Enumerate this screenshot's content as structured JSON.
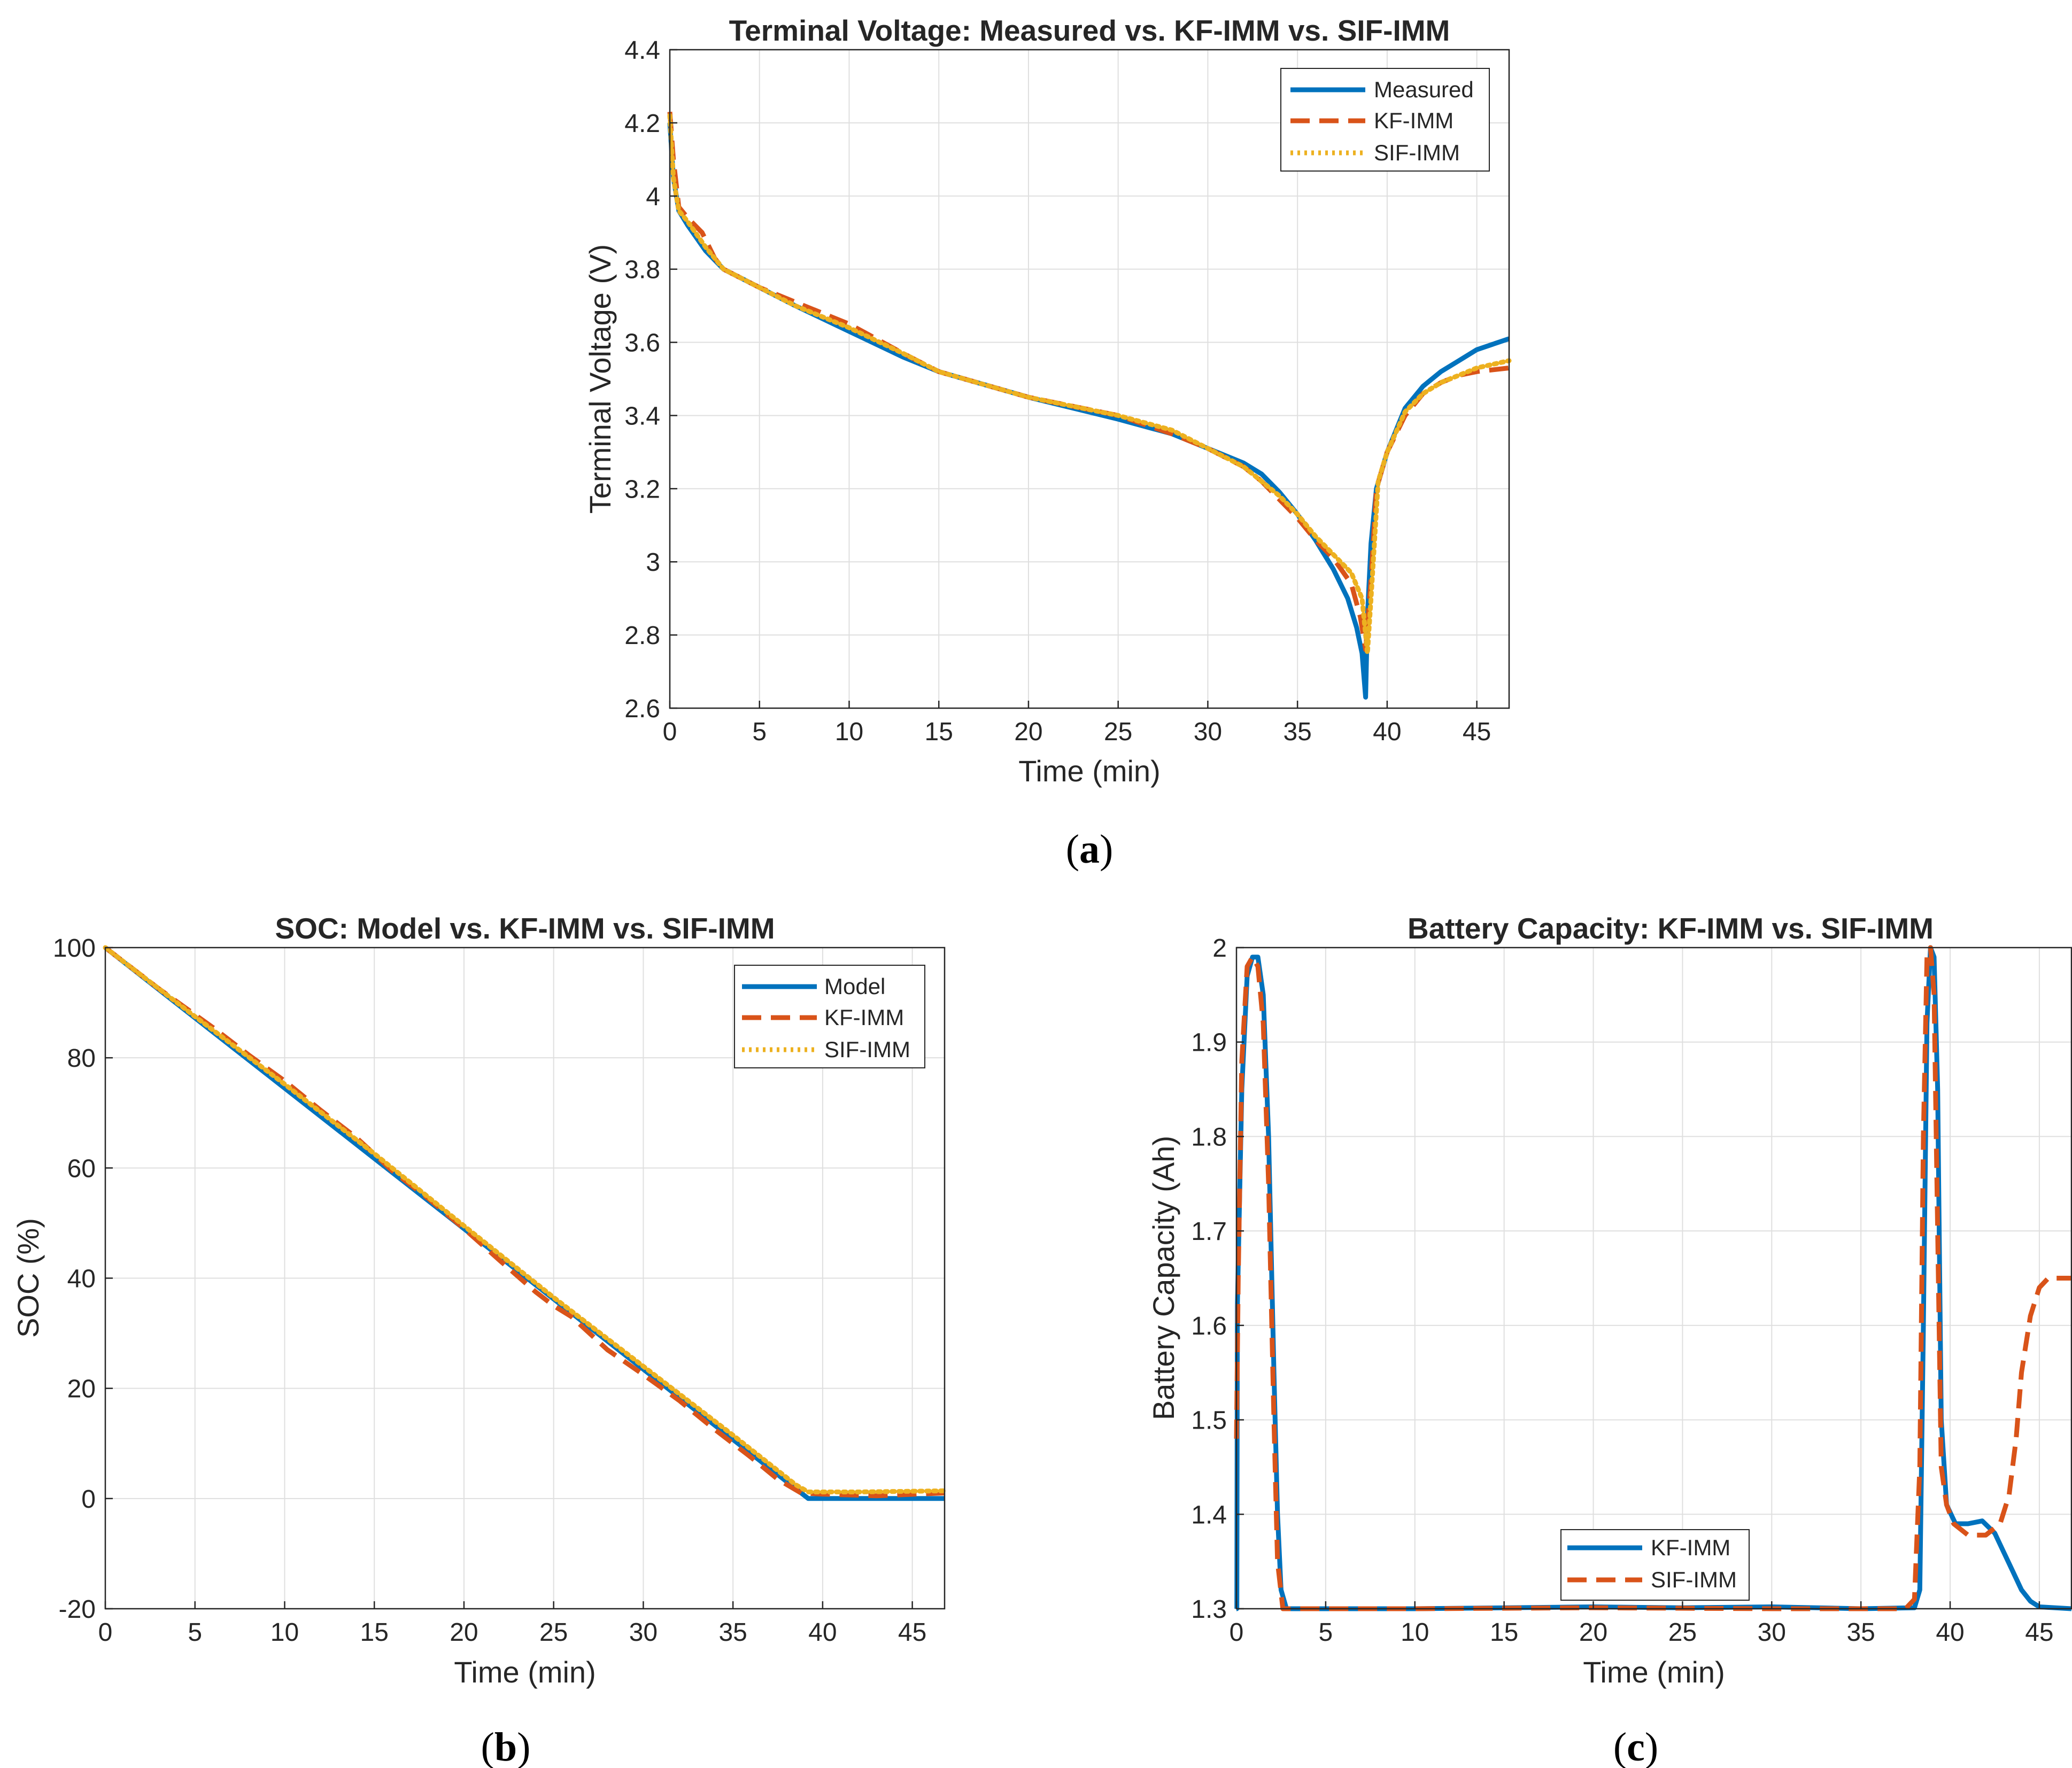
{
  "colors": {
    "series1": "#0072BD",
    "series2": "#D95319",
    "series3": "#EDB120",
    "grid": "#dfdfdf",
    "axis": "#262626"
  },
  "chart_data": [
    {
      "id": "a",
      "type": "line",
      "caption": "(a)",
      "caption_letter": "a",
      "title": "Terminal Voltage: Measured vs. KF-IMM vs. SIF-IMM",
      "xlabel": "Time (min)",
      "ylabel": "Terminal Voltage (V)",
      "xlim": [
        0,
        46.8
      ],
      "ylim": [
        2.6,
        4.4
      ],
      "xticks": [
        0,
        5,
        10,
        15,
        20,
        25,
        30,
        35,
        40,
        45
      ],
      "xtick_labels": [
        "0",
        "5",
        "10",
        "15",
        "20",
        "25",
        "30",
        "35",
        "40",
        "45"
      ],
      "yticks": [
        2.6,
        2.8,
        3.0,
        3.2,
        3.4,
        3.6,
        3.8,
        4.0,
        4.2,
        4.4
      ],
      "ytick_labels": [
        "2.6",
        "2.8",
        "3",
        "3.2",
        "3.4",
        "3.6",
        "3.8",
        "4",
        "4.2",
        "4.4"
      ],
      "grid": true,
      "legend_position": "top-right",
      "series": [
        {
          "name": "Measured",
          "style": "solid",
          "color": "#0072BD",
          "points": [
            [
              0,
              4.2
            ],
            [
              0.2,
              4.05
            ],
            [
              0.5,
              3.96
            ],
            [
              1,
              3.92
            ],
            [
              2,
              3.85
            ],
            [
              3,
              3.8
            ],
            [
              5,
              3.75
            ],
            [
              7,
              3.7
            ],
            [
              10,
              3.63
            ],
            [
              13,
              3.56
            ],
            [
              15,
              3.52
            ],
            [
              20,
              3.45
            ],
            [
              25,
              3.39
            ],
            [
              28,
              3.35
            ],
            [
              30,
              3.31
            ],
            [
              32,
              3.27
            ],
            [
              33,
              3.24
            ],
            [
              34,
              3.19
            ],
            [
              35,
              3.13
            ],
            [
              36,
              3.06
            ],
            [
              37,
              2.98
            ],
            [
              37.8,
              2.9
            ],
            [
              38.3,
              2.82
            ],
            [
              38.6,
              2.75
            ],
            [
              38.8,
              2.63
            ],
            [
              38.9,
              2.85
            ],
            [
              39.1,
              3.05
            ],
            [
              39.4,
              3.2
            ],
            [
              40,
              3.3
            ],
            [
              41,
              3.42
            ],
            [
              42,
              3.48
            ],
            [
              43,
              3.52
            ],
            [
              44,
              3.55
            ],
            [
              45,
              3.58
            ],
            [
              46.8,
              3.61
            ]
          ]
        },
        {
          "name": "KF-IMM",
          "style": "dashed",
          "color": "#D95319",
          "points": [
            [
              0,
              4.23
            ],
            [
              0.2,
              4.1
            ],
            [
              0.5,
              3.97
            ],
            [
              1,
              3.94
            ],
            [
              1.8,
              3.9
            ],
            [
              2.5,
              3.83
            ],
            [
              3,
              3.8
            ],
            [
              5,
              3.75
            ],
            [
              7,
              3.71
            ],
            [
              10,
              3.65
            ],
            [
              13,
              3.57
            ],
            [
              15,
              3.52
            ],
            [
              20,
              3.45
            ],
            [
              25,
              3.4
            ],
            [
              28,
              3.35
            ],
            [
              30,
              3.31
            ],
            [
              32,
              3.26
            ],
            [
              33,
              3.22
            ],
            [
              34,
              3.17
            ],
            [
              35,
              3.12
            ],
            [
              36,
              3.06
            ],
            [
              37,
              3.01
            ],
            [
              38,
              2.94
            ],
            [
              38.5,
              2.85
            ],
            [
              38.8,
              2.76
            ],
            [
              39.1,
              2.95
            ],
            [
              39.4,
              3.2
            ],
            [
              40,
              3.3
            ],
            [
              41,
              3.4
            ],
            [
              42,
              3.46
            ],
            [
              43,
              3.49
            ],
            [
              44,
              3.51
            ],
            [
              45,
              3.52
            ],
            [
              46.8,
              3.53
            ]
          ]
        },
        {
          "name": "SIF-IMM",
          "style": "dotted",
          "color": "#EDB120",
          "points": [
            [
              0,
              4.22
            ],
            [
              0.2,
              4.05
            ],
            [
              0.5,
              3.96
            ],
            [
              1,
              3.93
            ],
            [
              2,
              3.86
            ],
            [
              3,
              3.8
            ],
            [
              5,
              3.75
            ],
            [
              7,
              3.7
            ],
            [
              10,
              3.64
            ],
            [
              13,
              3.57
            ],
            [
              15,
              3.52
            ],
            [
              20,
              3.45
            ],
            [
              25,
              3.4
            ],
            [
              28,
              3.36
            ],
            [
              30,
              3.31
            ],
            [
              32,
              3.26
            ],
            [
              34,
              3.18
            ],
            [
              35,
              3.13
            ],
            [
              36,
              3.07
            ],
            [
              37,
              3.02
            ],
            [
              38,
              2.97
            ],
            [
              38.6,
              2.9
            ],
            [
              38.9,
              2.75
            ],
            [
              39.1,
              2.9
            ],
            [
              39.5,
              3.22
            ],
            [
              40,
              3.3
            ],
            [
              41,
              3.41
            ],
            [
              42,
              3.46
            ],
            [
              43,
              3.49
            ],
            [
              44,
              3.51
            ],
            [
              45,
              3.53
            ],
            [
              46.8,
              3.55
            ]
          ]
        }
      ]
    },
    {
      "id": "b",
      "type": "line",
      "caption": "(b)",
      "caption_letter": "b",
      "title": "SOC: Model vs. KF-IMM vs. SIF-IMM",
      "xlabel": "Time (min)",
      "ylabel": "SOC (%)",
      "xlim": [
        0,
        46.8
      ],
      "ylim": [
        -20,
        100
      ],
      "xticks": [
        0,
        5,
        10,
        15,
        20,
        25,
        30,
        35,
        40,
        45
      ],
      "xtick_labels": [
        "0",
        "5",
        "10",
        "15",
        "20",
        "25",
        "30",
        "35",
        "40",
        "45"
      ],
      "yticks": [
        -20,
        0,
        20,
        40,
        60,
        80,
        100
      ],
      "ytick_labels": [
        "-20",
        "0",
        "20",
        "40",
        "60",
        "80",
        "100"
      ],
      "grid": true,
      "legend_position": "top-right",
      "series": [
        {
          "name": "Model",
          "style": "solid",
          "color": "#0072BD",
          "points": [
            [
              0,
              100
            ],
            [
              39.2,
              0
            ],
            [
              46.8,
              0
            ]
          ]
        },
        {
          "name": "KF-IMM",
          "style": "dashed",
          "color": "#D95319",
          "points": [
            [
              0,
              100
            ],
            [
              3,
              92.5
            ],
            [
              6,
              85.5
            ],
            [
              8,
              80.5
            ],
            [
              10,
              75.8
            ],
            [
              12,
              70.5
            ],
            [
              14,
              65.5
            ],
            [
              16,
              59.5
            ],
            [
              18,
              54.5
            ],
            [
              20,
              49
            ],
            [
              22,
              43.2
            ],
            [
              24,
              37.5
            ],
            [
              25,
              35
            ],
            [
              26,
              33
            ],
            [
              28,
              27
            ],
            [
              30,
              22.5
            ],
            [
              32,
              17.8
            ],
            [
              34,
              12.5
            ],
            [
              36,
              7.5
            ],
            [
              37.5,
              3.5
            ],
            [
              38.8,
              1
            ],
            [
              40,
              0.8
            ],
            [
              43,
              0.5
            ],
            [
              46.8,
              1
            ]
          ]
        },
        {
          "name": "SIF-IMM",
          "style": "dotted",
          "color": "#EDB120",
          "points": [
            [
              0,
              100
            ],
            [
              5,
              87.5
            ],
            [
              10,
              75.2
            ],
            [
              15,
              62.6
            ],
            [
              20,
              49.5
            ],
            [
              25,
              36.5
            ],
            [
              30,
              24
            ],
            [
              35,
              11.5
            ],
            [
              38.5,
              2.5
            ],
            [
              39.2,
              1.2
            ],
            [
              42,
              1.2
            ],
            [
              46.8,
              1.4
            ]
          ]
        }
      ]
    },
    {
      "id": "c",
      "type": "line",
      "caption": "(c)",
      "caption_letter": "c",
      "title": "Battery Capacity: KF-IMM vs. SIF-IMM",
      "xlabel": "Time (min)",
      "ylabel": "Battery Capacity (Ah)",
      "xlim": [
        0,
        46.8
      ],
      "ylim": [
        1.3,
        2.0
      ],
      "xticks": [
        0,
        5,
        10,
        15,
        20,
        25,
        30,
        35,
        40,
        45
      ],
      "xtick_labels": [
        "0",
        "5",
        "10",
        "15",
        "20",
        "25",
        "30",
        "35",
        "40",
        "45"
      ],
      "yticks": [
        1.3,
        1.4,
        1.5,
        1.6,
        1.7,
        1.8,
        1.9,
        2.0
      ],
      "ytick_labels": [
        "1.3",
        "1.4",
        "1.5",
        "1.6",
        "1.7",
        "1.8",
        "1.9",
        "2"
      ],
      "grid": true,
      "legend_position": "bottom-center",
      "series": [
        {
          "name": "KF-IMM",
          "style": "solid",
          "color": "#0072BD",
          "points": [
            [
              0,
              1.3
            ],
            [
              0.02,
              1.3
            ],
            [
              0.05,
              1.62
            ],
            [
              0.3,
              1.85
            ],
            [
              0.6,
              1.97
            ],
            [
              0.9,
              1.99
            ],
            [
              1.2,
              1.99
            ],
            [
              1.5,
              1.95
            ],
            [
              1.8,
              1.8
            ],
            [
              2.1,
              1.55
            ],
            [
              2.3,
              1.4
            ],
            [
              2.5,
              1.32
            ],
            [
              2.8,
              1.3
            ],
            [
              10,
              1.3
            ],
            [
              20,
              1.302
            ],
            [
              25,
              1.301
            ],
            [
              30,
              1.302
            ],
            [
              35,
              1.3
            ],
            [
              38,
              1.301
            ],
            [
              38.3,
              1.32
            ],
            [
              38.5,
              1.6
            ],
            [
              38.7,
              1.92
            ],
            [
              38.9,
              2.0
            ],
            [
              39.1,
              1.99
            ],
            [
              39.3,
              1.85
            ],
            [
              39.5,
              1.5
            ],
            [
              39.8,
              1.41
            ],
            [
              40.3,
              1.39
            ],
            [
              41,
              1.39
            ],
            [
              41.8,
              1.393
            ],
            [
              42.5,
              1.38
            ],
            [
              43,
              1.36
            ],
            [
              43.5,
              1.34
            ],
            [
              44,
              1.32
            ],
            [
              44.5,
              1.308
            ],
            [
              45,
              1.302
            ],
            [
              46.8,
              1.3
            ]
          ]
        },
        {
          "name": "SIF-IMM",
          "style": "dashed",
          "color": "#D95319",
          "points": [
            [
              0,
              1.48
            ],
            [
              0.1,
              1.65
            ],
            [
              0.3,
              1.88
            ],
            [
              0.6,
              1.98
            ],
            [
              0.9,
              1.99
            ],
            [
              1.2,
              1.98
            ],
            [
              1.5,
              1.92
            ],
            [
              1.8,
              1.75
            ],
            [
              2.1,
              1.5
            ],
            [
              2.3,
              1.35
            ],
            [
              2.6,
              1.3
            ],
            [
              10,
              1.3
            ],
            [
              20,
              1.301
            ],
            [
              30,
              1.3
            ],
            [
              37.5,
              1.3
            ],
            [
              38,
              1.31
            ],
            [
              38.3,
              1.45
            ],
            [
              38.5,
              1.8
            ],
            [
              38.7,
              1.99
            ],
            [
              38.9,
              2.0
            ],
            [
              39.1,
              1.95
            ],
            [
              39.3,
              1.7
            ],
            [
              39.5,
              1.45
            ],
            [
              39.8,
              1.41
            ],
            [
              40.2,
              1.39
            ],
            [
              41,
              1.378
            ],
            [
              42,
              1.378
            ],
            [
              42.8,
              1.39
            ],
            [
              43.3,
              1.42
            ],
            [
              43.7,
              1.48
            ],
            [
              44,
              1.55
            ],
            [
              44.5,
              1.61
            ],
            [
              45,
              1.64
            ],
            [
              45.5,
              1.65
            ],
            [
              46.8,
              1.65
            ]
          ]
        }
      ]
    }
  ]
}
